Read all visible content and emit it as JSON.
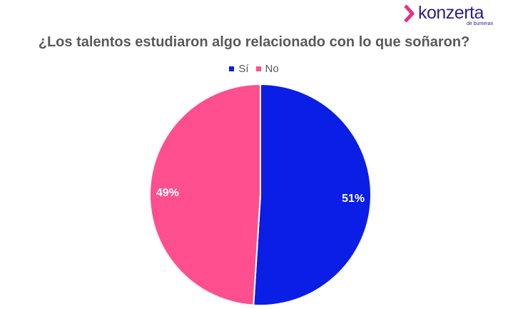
{
  "brand": {
    "name": "konzerta",
    "tagline": "de bumeran"
  },
  "chart_data": {
    "type": "pie",
    "title": "¿Los talentos estudiaron algo relacionado con lo que soñaron?",
    "legend_position": "top",
    "slices": [
      {
        "name": "Sí",
        "value": 51,
        "label": "51%",
        "color": "#0a1ee6"
      },
      {
        "name": "No",
        "value": 49,
        "label": "49%",
        "color": "#ff4f8f"
      }
    ]
  }
}
